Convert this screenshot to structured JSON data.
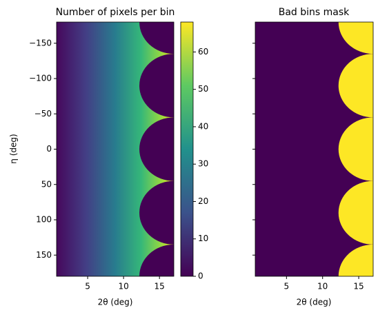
{
  "chart_data": [
    {
      "type": "heatmap",
      "title": "Number of pixels per bin",
      "xlabel": "2θ (deg)",
      "ylabel": "η (deg)",
      "xlim": [
        0.67,
        17.0
      ],
      "ylim": [
        -180,
        180
      ],
      "y_inverted": true,
      "xticks": [
        5,
        10,
        15
      ],
      "yticks": [
        {
          "value": -150,
          "label": "−150"
        },
        {
          "value": -100,
          "label": "−100"
        },
        {
          "value": -50,
          "label": "−50"
        },
        0,
        50,
        100,
        150
      ],
      "colormap": "viridis",
      "colorbar": {
        "lim": [
          0,
          68
        ],
        "ticks": [
          0,
          10,
          20,
          30,
          40,
          50,
          60
        ]
      }
    },
    {
      "type": "heatmap",
      "title": "Bad bins mask",
      "xlabel": "2θ (deg)",
      "xlim": [
        0.67,
        17.0
      ],
      "ylim": [
        -180,
        180
      ],
      "y_inverted": true,
      "xticks": [
        5,
        10,
        15
      ],
      "yticks": [
        -150,
        -100,
        -50,
        0,
        50,
        100,
        150
      ],
      "colormap": "viridis"
    }
  ]
}
